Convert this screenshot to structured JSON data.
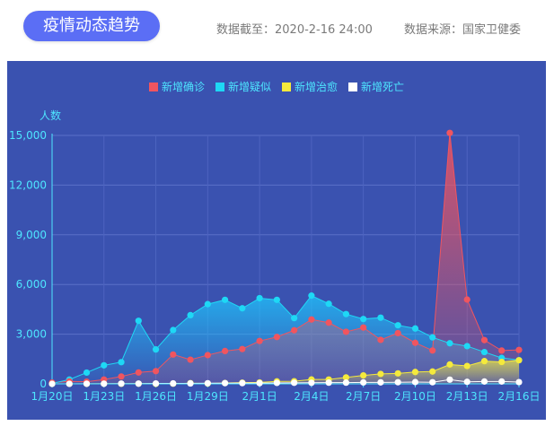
{
  "header": {
    "title": "疫情动态趋势",
    "data_cutoff": "数据截至：2020-2-16 24:00",
    "data_source": "数据来源：国家卫健委"
  },
  "colors": {
    "confirmed": "#f0555f",
    "suspected": "#1ed8f5",
    "cured": "#f5ea3c",
    "dead": "#ffffff",
    "axis_text": "#4ee6ff",
    "panel": "#3a52b0"
  },
  "chart_data": {
    "type": "line",
    "title": "",
    "xlabel": "",
    "ylabel": "人数",
    "ylim": [
      0,
      15000
    ],
    "yticks": [
      "0",
      "3,000",
      "6,000",
      "9,000",
      "12,000",
      "15,000"
    ],
    "ytick_values": [
      0,
      3000,
      6000,
      9000,
      12000,
      15000
    ],
    "legend_position": "top-center",
    "grid": true,
    "x": [
      "1月20日",
      "1月21日",
      "1月22日",
      "1月23日",
      "1月24日",
      "1月25日",
      "1月26日",
      "1月27日",
      "1月28日",
      "1月29日",
      "1月30日",
      "1月31日",
      "2月1日",
      "2月2日",
      "2月3日",
      "2月4日",
      "2月5日",
      "2月6日",
      "2月7日",
      "2月8日",
      "2月9日",
      "2月10日",
      "2月11日",
      "2月12日",
      "2月13日",
      "2月14日",
      "2月15日",
      "2月16日"
    ],
    "xtick_labels": [
      "1月20日",
      "1月23日",
      "1月26日",
      "1月29日",
      "2月1日",
      "2月4日",
      "2月7日",
      "2月10日",
      "2月13日",
      "2月16日"
    ],
    "series": [
      {
        "name": "新增确诊",
        "key": "confirmed",
        "values": [
          77,
          149,
          131,
          259,
          444,
          688,
          769,
          1771,
          1459,
          1737,
          1982,
          2102,
          2590,
          2829,
          3235,
          3887,
          3694,
          3143,
          3399,
          2656,
          3062,
          2478,
          2015,
          15152,
          5090,
          2641,
          2009,
          2048
        ]
      },
      {
        "name": "新增疑似",
        "key": "suspected",
        "values": [
          27,
          257,
          680,
          1118,
          1309,
          3806,
          2077,
          3248,
          4148,
          4812,
          5072,
          4562,
          5173,
          5072,
          3971,
          5328,
          4833,
          4214,
          3916,
          3995,
          3536,
          3342,
          2807,
          2450,
          2277,
          1918,
          1563,
          1432
        ]
      },
      {
        "name": "新增治愈",
        "key": "cured",
        "values": [
          0,
          0,
          0,
          6,
          3,
          11,
          2,
          9,
          43,
          21,
          47,
          72,
          85,
          147,
          157,
          262,
          261,
          387,
          510,
          600,
          632,
          716,
          744,
          1171,
          1081,
          1373,
          1323,
          1425
        ]
      },
      {
        "name": "新增死亡",
        "key": "dead",
        "values": [
          0,
          3,
          8,
          8,
          16,
          15,
          24,
          26,
          26,
          38,
          43,
          46,
          45,
          57,
          64,
          65,
          73,
          73,
          86,
          89,
          97,
          108,
          97,
          254,
          121,
          143,
          142,
          105
        ]
      }
    ]
  }
}
